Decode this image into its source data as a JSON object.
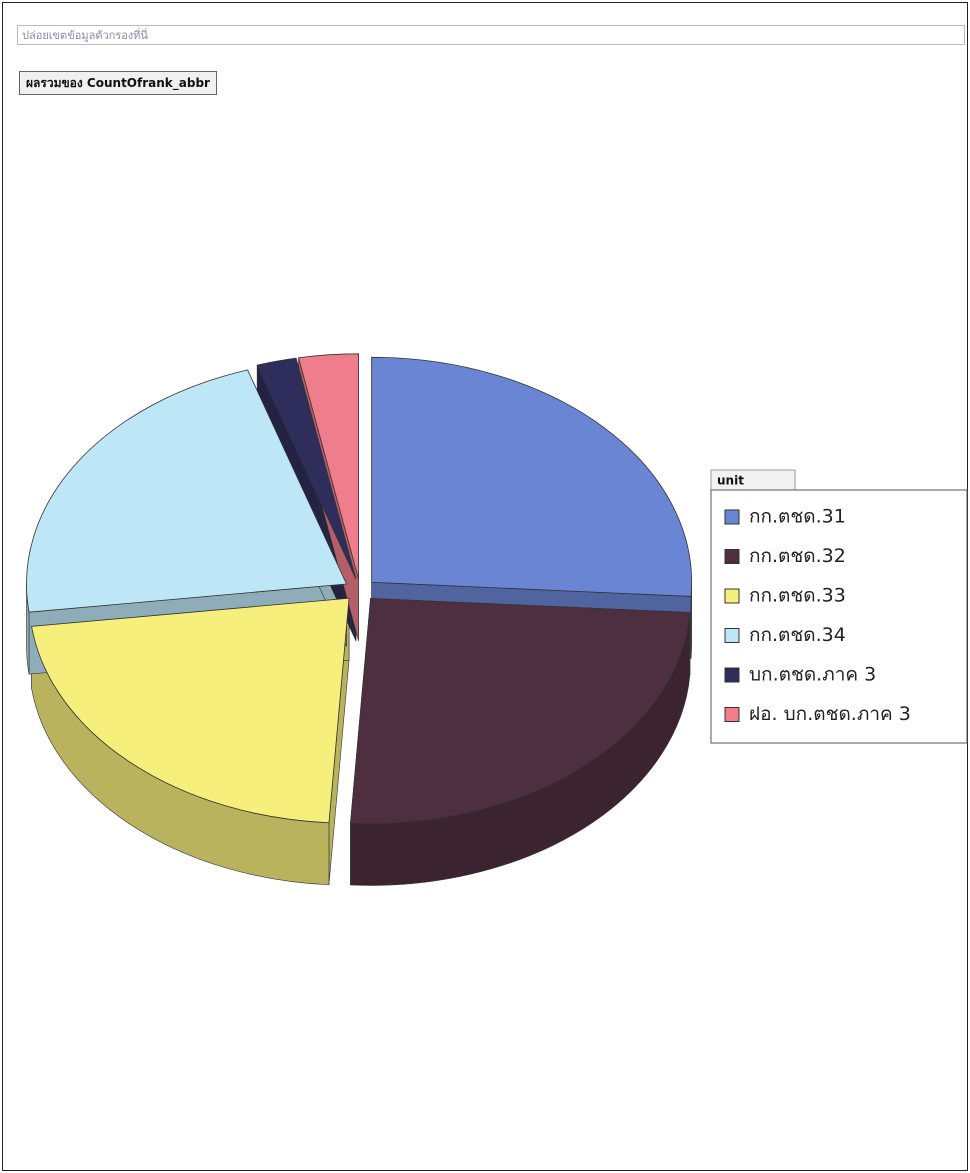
{
  "chart_data": {
    "type": "pie",
    "filter_zone": "ปล่อยเขตข้อมูลตัวกรองที่นี่",
    "field_button": "ผลรวมของ CountOfrank_abbr",
    "legend_title": "unit",
    "categories": [
      "กก.ตชด.31",
      "กก.ตชด.32",
      "กก.ตชด.33",
      "กก.ตชด.34",
      "บก.ตชด.ภาค 3",
      "ฝอ. บก.ตชด.ภาค 3"
    ],
    "values": [
      26,
      25,
      22,
      22,
      2,
      3
    ],
    "colors": [
      "#6a85d4",
      "#4e2f40",
      "#f6ef7c",
      "#bde7f6",
      "#2e2d5c",
      "#ef7d8c"
    ],
    "legend_position": "right"
  }
}
